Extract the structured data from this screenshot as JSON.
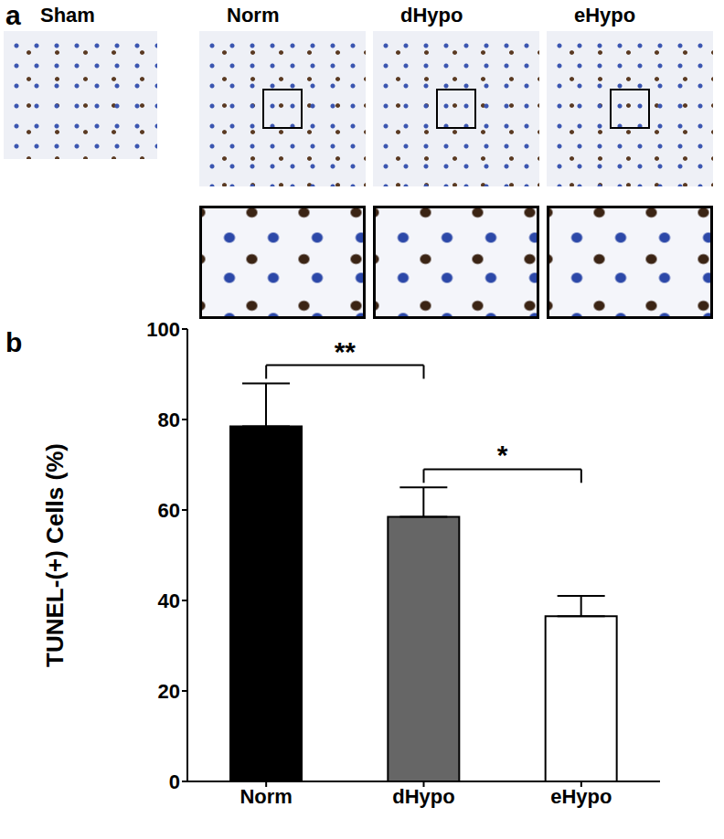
{
  "panel_a": {
    "label": "a",
    "images": [
      {
        "title": "Sham",
        "inset": false
      },
      {
        "title": "Norm",
        "inset": true
      },
      {
        "title": "dHypo",
        "inset": true
      },
      {
        "title": "eHypo",
        "inset": true
      }
    ]
  },
  "panel_b": {
    "label": "b"
  },
  "chart_data": {
    "type": "bar",
    "categories": [
      "Norm",
      "dHypo",
      "eHypo"
    ],
    "values": [
      78.5,
      58.5,
      36.5
    ],
    "errors": [
      9.5,
      6.5,
      4.5
    ],
    "colors": [
      "#000000",
      "#666666",
      "#ffffff"
    ],
    "ylabel": "TUNEL-(+) Cells (%)",
    "ylim": [
      0,
      100
    ],
    "yticks": [
      0,
      20,
      40,
      60,
      80,
      100
    ],
    "annotations": [
      {
        "text": "**",
        "from": "Norm",
        "to": "dHypo"
      },
      {
        "text": "*",
        "from": "dHypo",
        "to": "eHypo"
      }
    ]
  }
}
